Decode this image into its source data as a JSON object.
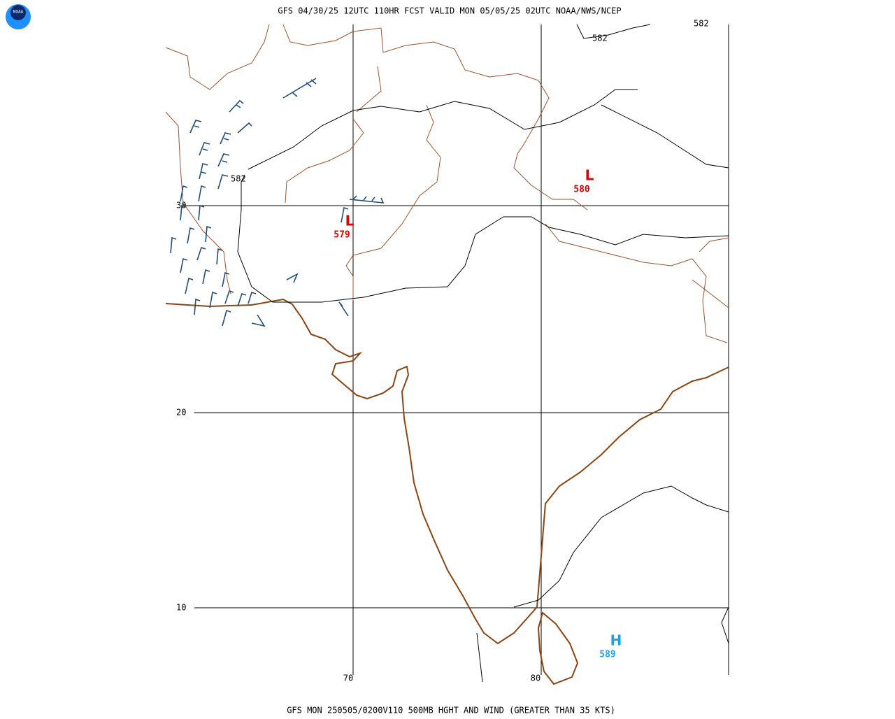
{
  "header": {
    "title": "GFS 04/30/25 12UTC 110HR FCST VALID MON 05/05/25 02UTC NOAA/NWS/NCEP"
  },
  "footer": {
    "caption": "GFS MON 250505/0200V110 500MB HGHT AND WIND (GREATER THAN 35 KTS)"
  },
  "logo": "NOAA",
  "grid": {
    "latitudes": [
      "30",
      "20",
      "10"
    ],
    "longitudes": [
      "70",
      "80"
    ]
  },
  "contour_labels": [
    "582",
    "582",
    "582"
  ],
  "centers": [
    {
      "symbol": "L",
      "value": "580"
    },
    {
      "symbol": "L",
      "value": "579"
    },
    {
      "symbol": "H",
      "value": "589"
    }
  ]
}
